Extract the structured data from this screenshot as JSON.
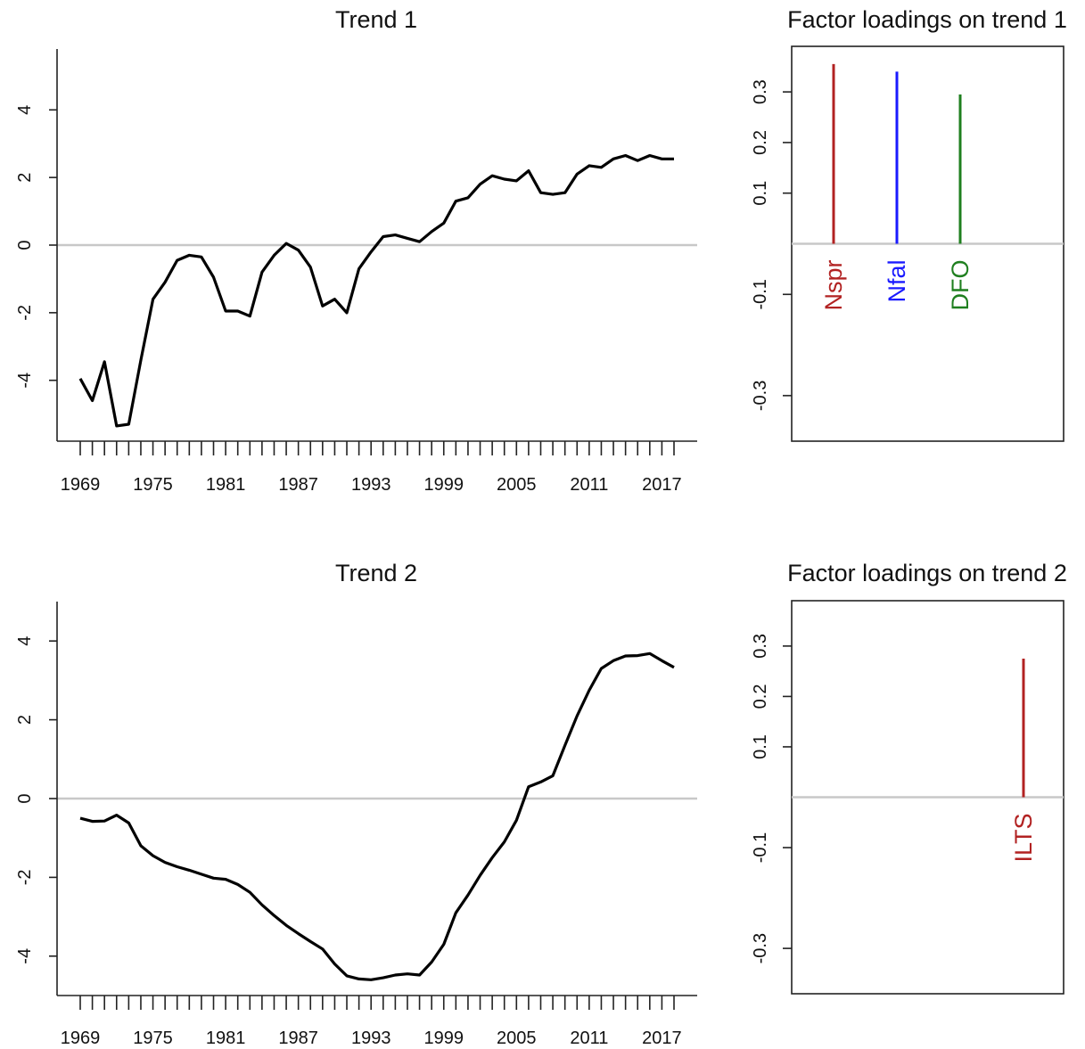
{
  "chart_data": [
    {
      "type": "line",
      "title": "Trend 1",
      "xlabel": "",
      "ylabel": "",
      "x": [
        1969,
        1970,
        1971,
        1972,
        1973,
        1974,
        1975,
        1976,
        1977,
        1978,
        1979,
        1980,
        1981,
        1982,
        1983,
        1984,
        1985,
        1986,
        1987,
        1988,
        1989,
        1990,
        1991,
        1992,
        1993,
        1994,
        1995,
        1996,
        1997,
        1998,
        1999,
        2000,
        2001,
        2002,
        2003,
        2004,
        2005,
        2006,
        2007,
        2008,
        2009,
        2010,
        2011,
        2012,
        2013,
        2014,
        2015,
        2016,
        2017,
        2018
      ],
      "values": [
        -3.95,
        -4.6,
        -3.45,
        -5.35,
        -5.3,
        -3.4,
        -1.6,
        -1.1,
        -0.45,
        -0.3,
        -0.35,
        -0.95,
        -1.95,
        -1.95,
        -2.1,
        -0.8,
        -0.3,
        0.05,
        -0.15,
        -0.65,
        -1.8,
        -1.6,
        -2.0,
        -0.7,
        -0.2,
        0.25,
        0.3,
        0.2,
        0.1,
        0.4,
        0.65,
        1.3,
        1.4,
        1.8,
        2.05,
        1.95,
        1.9,
        2.2,
        1.55,
        1.5,
        1.55,
        2.1,
        2.35,
        2.3,
        2.55,
        2.65,
        2.5,
        2.65,
        2.55,
        2.55
      ],
      "xticks": [
        "1969",
        "1975",
        "1981",
        "1987",
        "1993",
        "1999",
        "2005",
        "2011",
        "2017"
      ],
      "yticks": [
        "-4",
        "-2",
        "0",
        "2",
        "4"
      ],
      "ylim": [
        -5.8,
        5.8
      ],
      "hline": 0
    },
    {
      "type": "bar",
      "title": "Factor loadings on trend 1",
      "categories": [
        "Nspr",
        "Nfal",
        "DFO"
      ],
      "values": [
        0.355,
        0.34,
        0.295
      ],
      "colors": [
        "#b22222",
        "#1a1aff",
        "#1f7f1f"
      ],
      "yticks": [
        "-0.3",
        "-0.1",
        "0.1",
        "0.2",
        "0.3"
      ],
      "ylim": [
        -0.39,
        0.39
      ],
      "hline": 0
    },
    {
      "type": "line",
      "title": "Trend 2",
      "xlabel": "",
      "ylabel": "",
      "x": [
        1969,
        1970,
        1971,
        1972,
        1973,
        1974,
        1975,
        1976,
        1977,
        1978,
        1979,
        1980,
        1981,
        1982,
        1983,
        1984,
        1985,
        1986,
        1987,
        1988,
        1989,
        1990,
        1991,
        1992,
        1993,
        1994,
        1995,
        1996,
        1997,
        1998,
        1999,
        2000,
        2001,
        2002,
        2003,
        2004,
        2005,
        2006,
        2007,
        2008,
        2009,
        2010,
        2011,
        2012,
        2013,
        2014,
        2015,
        2016,
        2017,
        2018
      ],
      "values": [
        -0.5,
        -0.58,
        -0.57,
        -0.42,
        -0.62,
        -1.2,
        -1.45,
        -1.62,
        -1.73,
        -1.82,
        -1.92,
        -2.02,
        -2.05,
        -2.18,
        -2.38,
        -2.7,
        -2.97,
        -3.22,
        -3.43,
        -3.63,
        -3.82,
        -4.2,
        -4.5,
        -4.58,
        -4.6,
        -4.55,
        -4.48,
        -4.45,
        -4.48,
        -4.15,
        -3.7,
        -2.9,
        -2.45,
        -1.95,
        -1.5,
        -1.1,
        -0.55,
        0.3,
        0.42,
        0.58,
        1.35,
        2.1,
        2.75,
        3.3,
        3.5,
        3.62,
        3.63,
        3.68,
        3.5,
        3.33
      ],
      "xticks": [
        "1969",
        "1975",
        "1981",
        "1987",
        "1993",
        "1999",
        "2005",
        "2011",
        "2017"
      ],
      "yticks": [
        "-4",
        "-2",
        "0",
        "2",
        "4"
      ],
      "ylim": [
        -5.0,
        5.0
      ],
      "hline": 0
    },
    {
      "type": "bar",
      "title": "Factor loadings on trend 2",
      "categories": [
        "",
        "",
        "",
        "ILTS"
      ],
      "values": [
        0,
        0,
        0,
        0.275
      ],
      "colors": [
        "#b22222",
        "#b22222",
        "#b22222",
        "#b22222"
      ],
      "yticks": [
        "-0.3",
        "-0.1",
        "0.1",
        "0.2",
        "0.3"
      ],
      "ylim": [
        -0.39,
        0.39
      ],
      "hline": 0
    }
  ]
}
